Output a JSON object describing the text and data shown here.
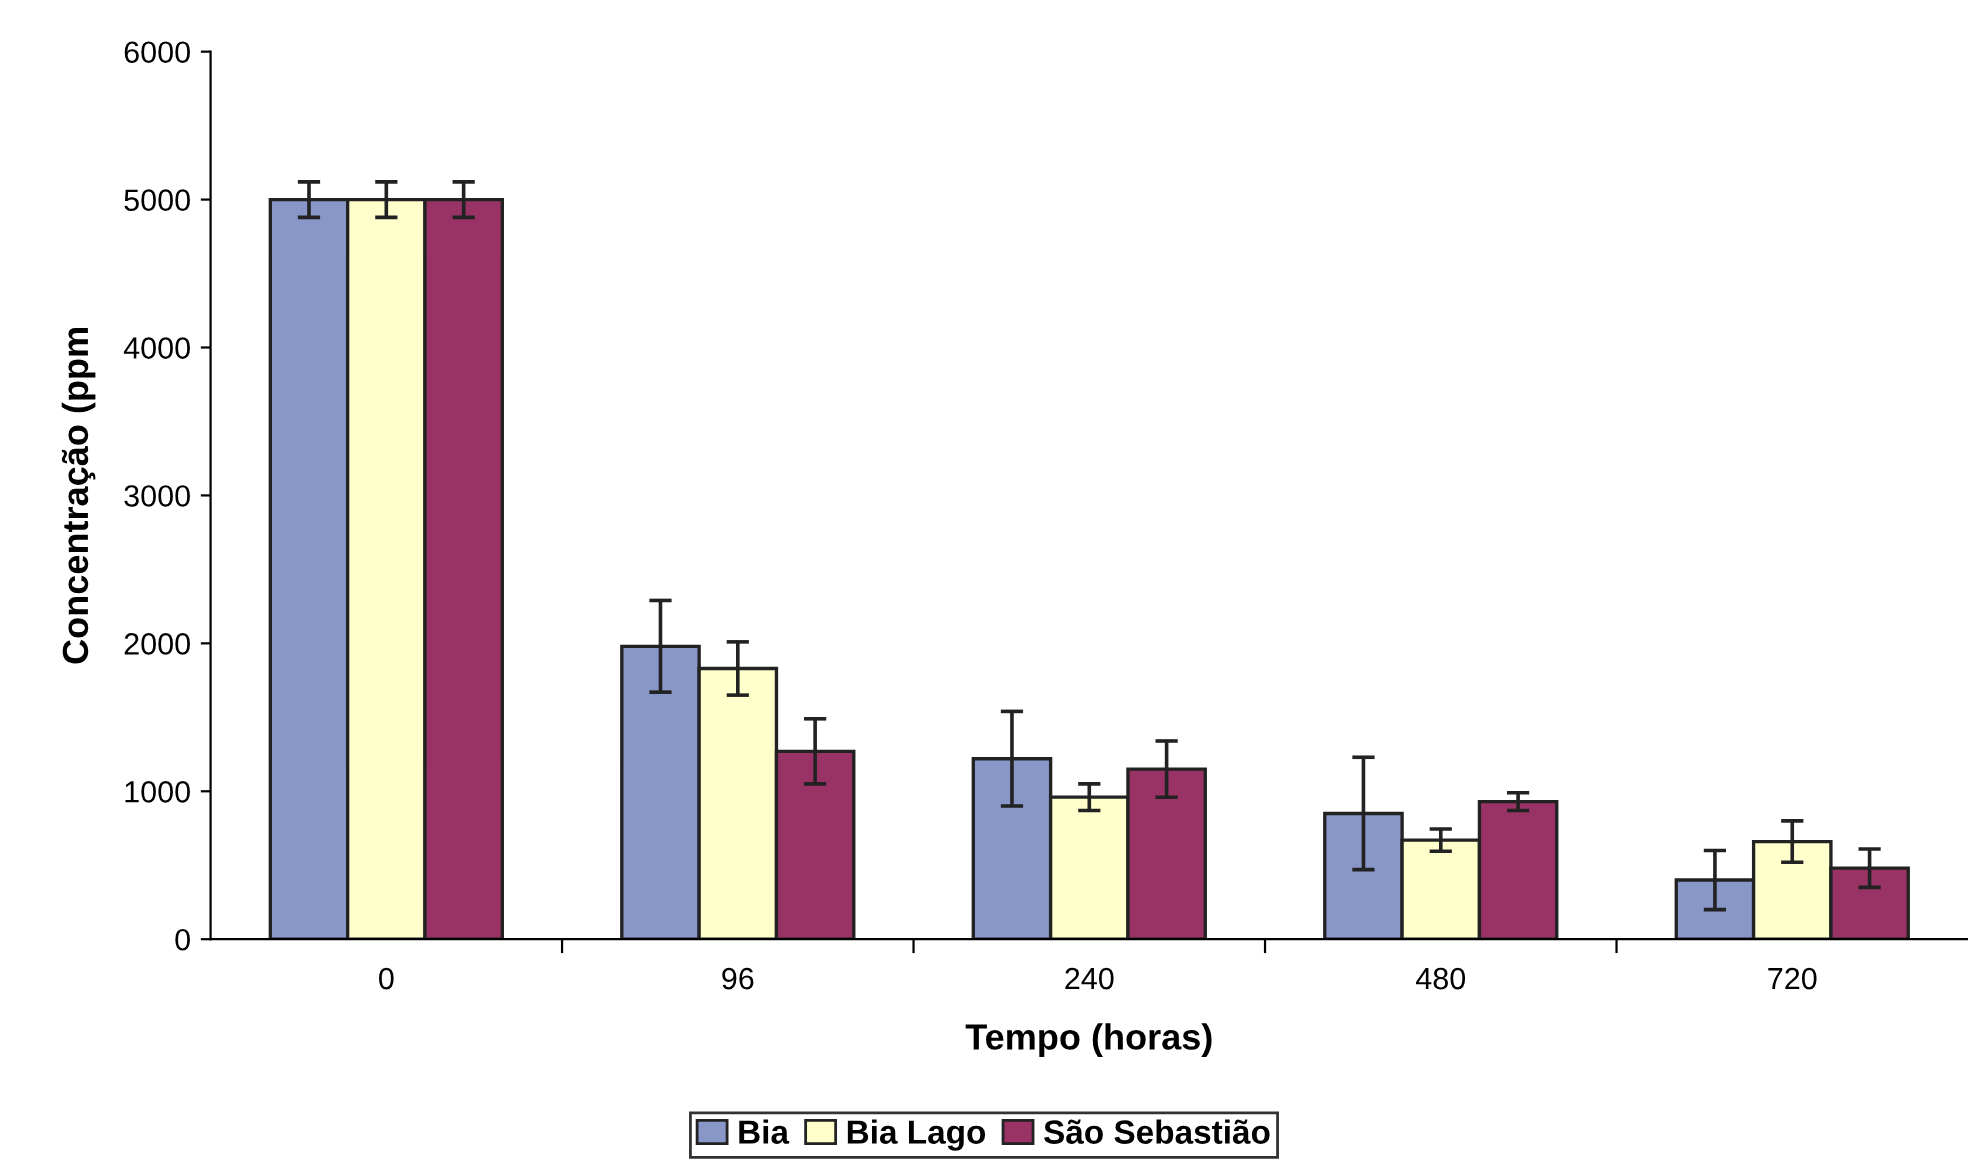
{
  "chart_data": {
    "type": "bar",
    "xlabel": "Tempo (horas)",
    "ylabel": "Concentração (ppm",
    "categories": [
      "0",
      "96",
      "240",
      "480",
      "720"
    ],
    "series": [
      {
        "name": "Bia",
        "color": "#8896c8",
        "values": [
          5000,
          1980,
          1220,
          850,
          400
        ],
        "errors": [
          120,
          310,
          320,
          380,
          200
        ]
      },
      {
        "name": "Bia Lago",
        "color": "#ffffcc",
        "values": [
          5000,
          1830,
          960,
          670,
          660
        ],
        "errors": [
          120,
          180,
          90,
          75,
          140
        ]
      },
      {
        "name": "São Sebastião",
        "color": "#993366",
        "values": [
          5000,
          1270,
          1150,
          930,
          480
        ],
        "errors": [
          120,
          220,
          190,
          60,
          130
        ]
      }
    ],
    "ylim": [
      0,
      6000
    ],
    "yticks": [
      0,
      1000,
      2000,
      3000,
      4000,
      5000,
      6000
    ],
    "grid": false,
    "legend": "bottom"
  }
}
